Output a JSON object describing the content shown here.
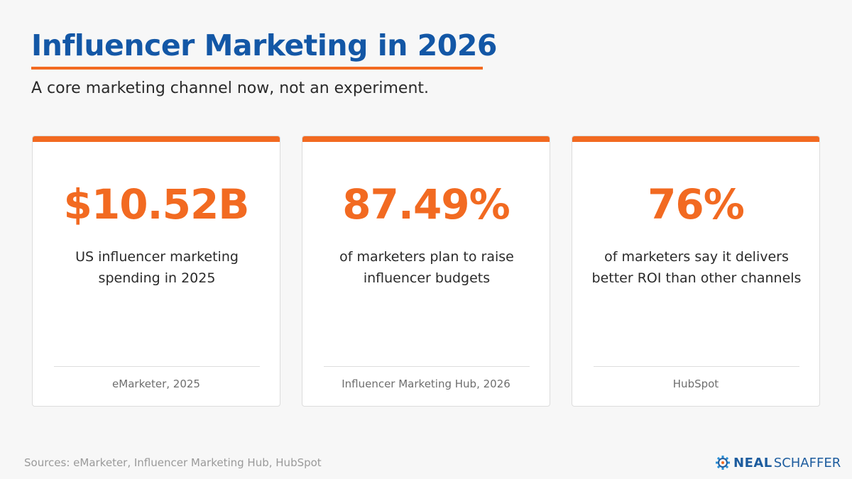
{
  "header": {
    "title": "Influencer Marketing in 2026",
    "subtitle": "A core marketing channel now, not an experiment."
  },
  "cards": [
    {
      "stat": "$10.52B",
      "description": "US influencer marketing spending in 2025",
      "source": "eMarketer, 2025"
    },
    {
      "stat": "87.49%",
      "description": "of marketers plan to raise influencer budgets",
      "source": "Influencer Marketing Hub, 2026"
    },
    {
      "stat": "76%",
      "description": "of marketers say it delivers better ROI than other channels",
      "source": "HubSpot"
    }
  ],
  "footer": {
    "sources": "Sources: eMarketer, Influencer Marketing Hub, HubSpot",
    "logo_part1": "NEAL",
    "logo_part2": "SCHAFFER",
    "logo_icon": "compass-gear-icon"
  },
  "colors": {
    "title_blue": "#1357a6",
    "accent_orange": "#f26a21",
    "logo_blue": "#1d5c9e"
  }
}
